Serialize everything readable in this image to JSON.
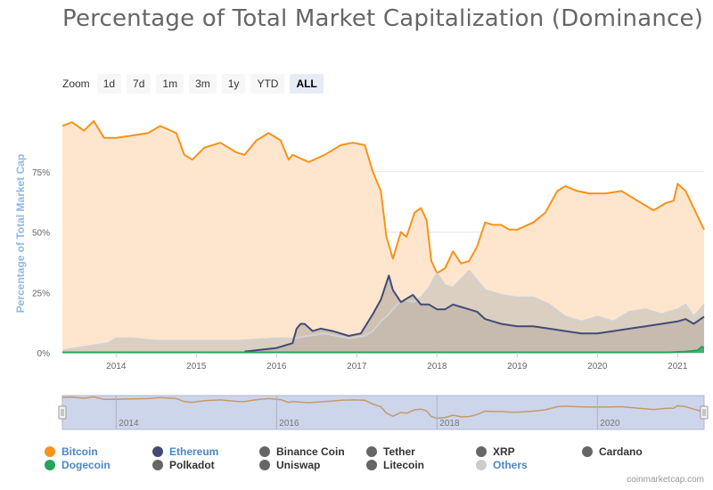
{
  "title": "Percentage of Total Market Capitalization (Dominance)",
  "zoom": {
    "label": "Zoom",
    "buttons": [
      "1d",
      "7d",
      "1m",
      "3m",
      "1y",
      "YTD",
      "ALL"
    ],
    "active": "ALL"
  },
  "footer": "coinmarketcap.com",
  "chart_data": {
    "type": "area",
    "title": "Percentage of Total Market Capitalization (Dominance)",
    "ylabel": "Percentage of Total Market Cap",
    "ylim": [
      0,
      100
    ],
    "yticks": [
      0,
      25,
      50,
      75
    ],
    "ytick_labels": [
      "0%",
      "25%",
      "50%",
      "75%"
    ],
    "xlim": [
      2013.33,
      2021.33
    ],
    "xticks": [
      2014,
      2015,
      2016,
      2017,
      2018,
      2019,
      2020,
      2021
    ],
    "xtick_labels": [
      "2014",
      "2015",
      "2016",
      "2017",
      "2018",
      "2019",
      "2020",
      "2021"
    ],
    "navigator_labels": [
      "2014",
      "2016",
      "2018",
      "2020"
    ],
    "grid": true,
    "legend_position": "bottom",
    "series": [
      {
        "name": "Bitcoin",
        "color": "#f7931a",
        "fill": "#fde3c8",
        "points": [
          [
            2013.33,
            94
          ],
          [
            2013.45,
            95.5
          ],
          [
            2013.6,
            92
          ],
          [
            2013.72,
            96
          ],
          [
            2013.85,
            89
          ],
          [
            2014.0,
            89
          ],
          [
            2014.2,
            90
          ],
          [
            2014.4,
            91
          ],
          [
            2014.55,
            94
          ],
          [
            2014.75,
            91
          ],
          [
            2014.85,
            82
          ],
          [
            2014.95,
            80
          ],
          [
            2015.1,
            85
          ],
          [
            2015.3,
            87
          ],
          [
            2015.5,
            83
          ],
          [
            2015.6,
            82
          ],
          [
            2015.75,
            88
          ],
          [
            2015.9,
            91
          ],
          [
            2016.05,
            88
          ],
          [
            2016.15,
            80
          ],
          [
            2016.2,
            82
          ],
          [
            2016.4,
            79
          ],
          [
            2016.6,
            82
          ],
          [
            2016.8,
            86
          ],
          [
            2016.95,
            87
          ],
          [
            2017.1,
            86
          ],
          [
            2017.2,
            75
          ],
          [
            2017.3,
            67
          ],
          [
            2017.37,
            48
          ],
          [
            2017.45,
            39
          ],
          [
            2017.55,
            50
          ],
          [
            2017.62,
            48
          ],
          [
            2017.72,
            58
          ],
          [
            2017.8,
            60
          ],
          [
            2017.87,
            55
          ],
          [
            2017.93,
            38
          ],
          [
            2018.0,
            33
          ],
          [
            2018.1,
            35
          ],
          [
            2018.2,
            42
          ],
          [
            2018.3,
            37
          ],
          [
            2018.4,
            38
          ],
          [
            2018.5,
            44
          ],
          [
            2018.6,
            54
          ],
          [
            2018.7,
            53
          ],
          [
            2018.8,
            53
          ],
          [
            2018.9,
            51
          ],
          [
            2019.0,
            51
          ],
          [
            2019.2,
            54
          ],
          [
            2019.35,
            58
          ],
          [
            2019.5,
            67
          ],
          [
            2019.6,
            69
          ],
          [
            2019.75,
            67
          ],
          [
            2019.9,
            66
          ],
          [
            2020.1,
            66
          ],
          [
            2020.3,
            67
          ],
          [
            2020.5,
            63
          ],
          [
            2020.7,
            59
          ],
          [
            2020.85,
            62
          ],
          [
            2020.95,
            63
          ],
          [
            2021.0,
            70
          ],
          [
            2021.1,
            67
          ],
          [
            2021.2,
            60
          ],
          [
            2021.33,
            51
          ]
        ]
      },
      {
        "name": "Others",
        "color": "#d2d2d2",
        "fill": "#cfc7be",
        "points": [
          [
            2013.33,
            1
          ],
          [
            2013.7,
            3
          ],
          [
            2013.9,
            4
          ],
          [
            2014.0,
            6
          ],
          [
            2014.2,
            6
          ],
          [
            2014.5,
            5
          ],
          [
            2014.8,
            5
          ],
          [
            2015.0,
            5
          ],
          [
            2015.5,
            5
          ],
          [
            2016.0,
            6
          ],
          [
            2016.2,
            6
          ],
          [
            2016.4,
            7
          ],
          [
            2016.6,
            8
          ],
          [
            2016.9,
            6
          ],
          [
            2017.1,
            7
          ],
          [
            2017.2,
            9
          ],
          [
            2017.3,
            13
          ],
          [
            2017.4,
            16
          ],
          [
            2017.5,
            20
          ],
          [
            2017.6,
            22
          ],
          [
            2017.7,
            21
          ],
          [
            2017.8,
            23
          ],
          [
            2017.9,
            27
          ],
          [
            2018.0,
            33
          ],
          [
            2018.1,
            28
          ],
          [
            2018.2,
            27
          ],
          [
            2018.4,
            34
          ],
          [
            2018.5,
            30
          ],
          [
            2018.6,
            26
          ],
          [
            2018.8,
            24
          ],
          [
            2019.0,
            23
          ],
          [
            2019.2,
            23
          ],
          [
            2019.4,
            20
          ],
          [
            2019.6,
            15
          ],
          [
            2019.8,
            13
          ],
          [
            2020.0,
            15
          ],
          [
            2020.2,
            13
          ],
          [
            2020.4,
            17
          ],
          [
            2020.6,
            18
          ],
          [
            2020.8,
            16
          ],
          [
            2021.0,
            18
          ],
          [
            2021.1,
            20
          ],
          [
            2021.2,
            15
          ],
          [
            2021.33,
            20
          ]
        ]
      },
      {
        "name": "Ethereum",
        "color": "#434a76",
        "fill": "#c0b4a8",
        "points": [
          [
            2015.6,
            0.5
          ],
          [
            2016.0,
            2
          ],
          [
            2016.2,
            4
          ],
          [
            2016.25,
            10
          ],
          [
            2016.3,
            12
          ],
          [
            2016.35,
            12
          ],
          [
            2016.45,
            9
          ],
          [
            2016.55,
            10
          ],
          [
            2016.7,
            9
          ],
          [
            2016.9,
            7
          ],
          [
            2017.05,
            8
          ],
          [
            2017.2,
            16
          ],
          [
            2017.3,
            22
          ],
          [
            2017.4,
            32
          ],
          [
            2017.45,
            26
          ],
          [
            2017.55,
            21
          ],
          [
            2017.7,
            24
          ],
          [
            2017.8,
            20
          ],
          [
            2017.9,
            20
          ],
          [
            2018.0,
            18
          ],
          [
            2018.1,
            18
          ],
          [
            2018.2,
            20
          ],
          [
            2018.3,
            19
          ],
          [
            2018.4,
            18
          ],
          [
            2018.5,
            17
          ],
          [
            2018.6,
            14
          ],
          [
            2018.7,
            13
          ],
          [
            2018.8,
            12
          ],
          [
            2019.0,
            11
          ],
          [
            2019.2,
            11
          ],
          [
            2019.4,
            10
          ],
          [
            2019.6,
            9
          ],
          [
            2019.8,
            8
          ],
          [
            2020.0,
            8
          ],
          [
            2020.2,
            9
          ],
          [
            2020.4,
            10
          ],
          [
            2020.6,
            11
          ],
          [
            2020.8,
            12
          ],
          [
            2021.0,
            13
          ],
          [
            2021.1,
            14
          ],
          [
            2021.2,
            12
          ],
          [
            2021.33,
            15
          ]
        ]
      },
      {
        "name": "Dogecoin",
        "color": "#23a55a",
        "fill": "#23a55a",
        "points": [
          [
            2013.33,
            0.2
          ],
          [
            2020.9,
            0.2
          ],
          [
            2021.1,
            0.5
          ],
          [
            2021.25,
            1
          ],
          [
            2021.3,
            2.5
          ],
          [
            2021.33,
            2
          ]
        ]
      }
    ],
    "legend": [
      {
        "name": "Bitcoin",
        "color": "#f7931a",
        "active": true
      },
      {
        "name": "Ethereum",
        "color": "#434a76",
        "active": true
      },
      {
        "name": "Binance Coin",
        "color": "#666666",
        "active": false
      },
      {
        "name": "Tether",
        "color": "#666666",
        "active": false
      },
      {
        "name": "XRP",
        "color": "#666666",
        "active": false
      },
      {
        "name": "Cardano",
        "color": "#666666",
        "active": false
      },
      {
        "name": "Dogecoin",
        "color": "#23a55a",
        "active": true
      },
      {
        "name": "Polkadot",
        "color": "#666666",
        "active": false
      },
      {
        "name": "Uniswap",
        "color": "#666666",
        "active": false
      },
      {
        "name": "Litecoin",
        "color": "#666666",
        "active": false
      },
      {
        "name": "Others",
        "color": "#cccccc",
        "active": true
      }
    ]
  }
}
